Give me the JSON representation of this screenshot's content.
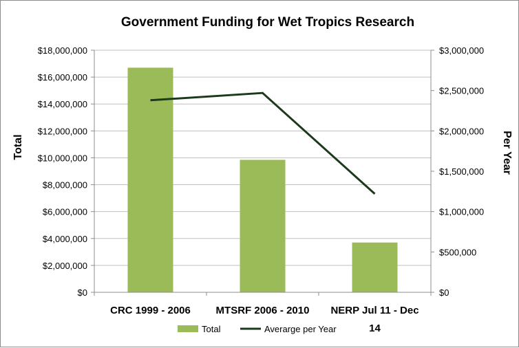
{
  "chart_data": {
    "type": "bar",
    "title": "Government Funding for Wet Tropics Research",
    "categories": [
      "CRC 1999 - 2006",
      "MTSRF 2006 - 2010",
      "NERP Jul 11 - Dec 14"
    ],
    "category_lines": [
      [
        "CRC 1999 - 2006"
      ],
      [
        "MTSRF 2006 - 2010"
      ],
      [
        "NERP Jul 11 - Dec",
        "14"
      ]
    ],
    "ylabel": "Total",
    "y2label": "Per Year",
    "ylim": [
      0,
      18000000
    ],
    "y2lim": [
      0,
      3000000
    ],
    "yticks": [
      "$0",
      "$2,000,000",
      "$4,000,000",
      "$6,000,000",
      "$8,000,000",
      "$10,000,000",
      "$12,000,000",
      "$14,000,000",
      "$16,000,000",
      "$18,000,000"
    ],
    "y2ticks": [
      "$0",
      "$500,000",
      "$1,000,000",
      "$1,500,000",
      "$2,000,000",
      "$2,500,000",
      "$3,000,000"
    ],
    "grid": true,
    "legend_position": "bottom",
    "series": [
      {
        "name": "Total",
        "type": "bar",
        "axis": "left",
        "color": "#9bbb59",
        "values": [
          16700000,
          9850000,
          3700000
        ]
      },
      {
        "name": "Averarge per Year",
        "type": "line",
        "axis": "right",
        "color": "#1b3a1b",
        "values": [
          2380000,
          2470000,
          1220000
        ]
      }
    ]
  }
}
